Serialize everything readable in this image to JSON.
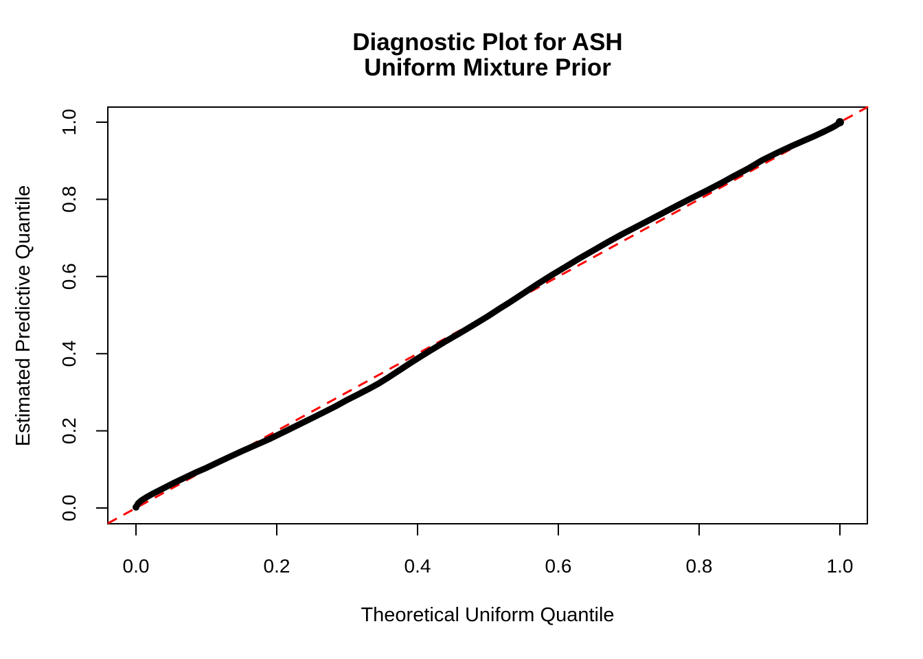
{
  "page": {
    "background_color": "#FFFFFF",
    "text_color": "#000000"
  },
  "chart_data": {
    "type": "line",
    "title": "Diagnostic Plot for ASH",
    "subtitle": "Uniform Mixture Prior",
    "xlabel": "Theoretical Uniform Quantile",
    "ylabel": "Estimated Predictive Quantile",
    "xlim": [
      -0.04,
      1.04
    ],
    "ylim": [
      -0.04,
      1.04
    ],
    "x_ticks": [
      0.0,
      0.2,
      0.4,
      0.6,
      0.8,
      1.0
    ],
    "y_ticks": [
      0.0,
      0.2,
      0.4,
      0.6,
      0.8,
      1.0
    ],
    "tick_label_format_decimals": 1,
    "grid": false,
    "legend_position": "none",
    "frame_color": "#000000",
    "series": [
      {
        "name": "estimated-predictive-quantile-curve",
        "description": "thick curve of plotted quantile points",
        "color": "#000000",
        "style": "solid-thick",
        "points": [
          [
            0.0,
            0.002
          ],
          [
            0.003,
            0.012
          ],
          [
            0.008,
            0.02
          ],
          [
            0.015,
            0.028
          ],
          [
            0.025,
            0.038
          ],
          [
            0.04,
            0.052
          ],
          [
            0.055,
            0.066
          ],
          [
            0.07,
            0.079
          ],
          [
            0.085,
            0.092
          ],
          [
            0.1,
            0.104
          ],
          [
            0.115,
            0.117
          ],
          [
            0.13,
            0.13
          ],
          [
            0.15,
            0.147
          ],
          [
            0.17,
            0.163
          ],
          [
            0.19,
            0.179
          ],
          [
            0.21,
            0.197
          ],
          [
            0.23,
            0.215
          ],
          [
            0.25,
            0.233
          ],
          [
            0.27,
            0.251
          ],
          [
            0.285,
            0.265
          ],
          [
            0.3,
            0.28
          ],
          [
            0.315,
            0.294
          ],
          [
            0.33,
            0.308
          ],
          [
            0.345,
            0.323
          ],
          [
            0.36,
            0.34
          ],
          [
            0.375,
            0.358
          ],
          [
            0.39,
            0.376
          ],
          [
            0.405,
            0.393
          ],
          [
            0.42,
            0.41
          ],
          [
            0.44,
            0.432
          ],
          [
            0.46,
            0.453
          ],
          [
            0.48,
            0.475
          ],
          [
            0.5,
            0.497
          ],
          [
            0.515,
            0.515
          ],
          [
            0.53,
            0.532
          ],
          [
            0.55,
            0.556
          ],
          [
            0.57,
            0.58
          ],
          [
            0.59,
            0.603
          ],
          [
            0.61,
            0.625
          ],
          [
            0.63,
            0.647
          ],
          [
            0.65,
            0.668
          ],
          [
            0.67,
            0.689
          ],
          [
            0.69,
            0.709
          ],
          [
            0.71,
            0.728
          ],
          [
            0.73,
            0.747
          ],
          [
            0.75,
            0.766
          ],
          [
            0.77,
            0.785
          ],
          [
            0.79,
            0.804
          ],
          [
            0.81,
            0.822
          ],
          [
            0.83,
            0.841
          ],
          [
            0.85,
            0.861
          ],
          [
            0.87,
            0.88
          ],
          [
            0.89,
            0.902
          ],
          [
            0.91,
            0.92
          ],
          [
            0.93,
            0.937
          ],
          [
            0.95,
            0.953
          ],
          [
            0.965,
            0.965
          ],
          [
            0.978,
            0.976
          ],
          [
            0.988,
            0.985
          ],
          [
            0.994,
            0.991
          ],
          [
            0.998,
            0.996
          ],
          [
            1.0,
            1.0
          ]
        ]
      },
      {
        "name": "identity-reference-line",
        "description": "y = x reference line",
        "color": "#FF0000",
        "style": "dashed",
        "points": [
          [
            -0.04,
            -0.04
          ],
          [
            1.04,
            1.04
          ]
        ]
      }
    ]
  }
}
